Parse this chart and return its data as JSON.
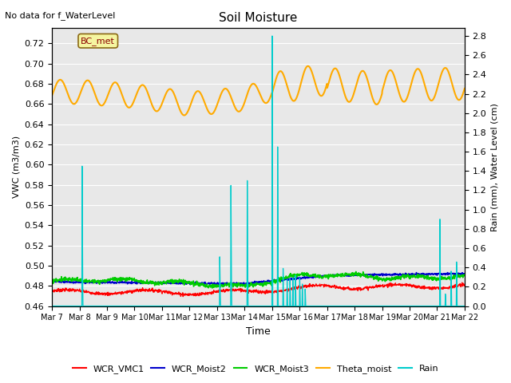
{
  "title": "Soil Moisture",
  "xlabel": "Time",
  "ylabel_left": "VWC (m3/m3)",
  "ylabel_right": "Rain (mm), Water Level (cm)",
  "top_left_text": "No data for f_WaterLevel",
  "station_label": "BC_met",
  "ylim_left": [
    0.46,
    0.735
  ],
  "ylim_right": [
    0.0,
    2.88
  ],
  "yticks_left": [
    0.46,
    0.48,
    0.5,
    0.52,
    0.54,
    0.56,
    0.58,
    0.6,
    0.62,
    0.64,
    0.66,
    0.68,
    0.7,
    0.72
  ],
  "yticks_right": [
    0.0,
    0.2,
    0.4,
    0.6,
    0.8,
    1.0,
    1.2,
    1.4,
    1.6,
    1.8,
    2.0,
    2.2,
    2.4,
    2.6,
    2.8
  ],
  "xtick_labels": [
    "Mar 7",
    "Mar 8",
    "Mar 9",
    "Mar 10",
    "Mar 11",
    "Mar 12",
    "Mar 13",
    "Mar 14",
    "Mar 15",
    "Mar 16",
    "Mar 17",
    "Mar 18",
    "Mar 19",
    "Mar 20",
    "Mar 21",
    "Mar 22"
  ],
  "line_colors": {
    "WCR_VMC1": "#ff0000",
    "WCR_Moist2": "#0000cc",
    "WCR_Moist3": "#00cc00",
    "Theta_moist": "#ffaa00",
    "Rain": "#00cccc"
  },
  "background_color": "#e8e8e8",
  "grid_color": "#ffffff",
  "fig_bg": "#ffffff"
}
